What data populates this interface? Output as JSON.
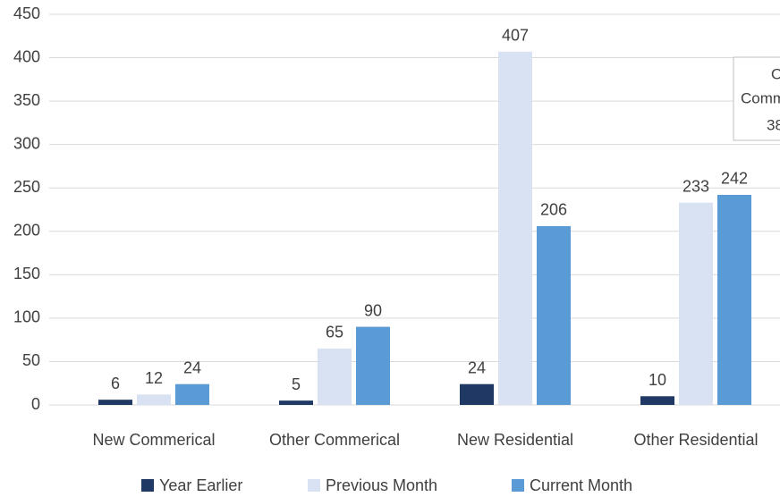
{
  "chart_data": {
    "type": "bar",
    "categories": [
      "New Commerical",
      "Other Commerical",
      "New Residential",
      "Other Residential"
    ],
    "series": [
      {
        "name": "Year Earlier",
        "color": "#1f3864",
        "values": [
          6,
          5,
          24,
          10
        ]
      },
      {
        "name": "Previous Month",
        "color": "#d9e2f3",
        "values": [
          12,
          65,
          407,
          233
        ]
      },
      {
        "name": "Current Month",
        "color": "#5b9bd5",
        "values": [
          24,
          90,
          206,
          242
        ]
      }
    ],
    "ylim": [
      0,
      450
    ],
    "yticks": [
      0,
      50,
      100,
      150,
      200,
      250,
      300,
      350,
      400,
      450
    ],
    "grid": true,
    "legend": "bottom",
    "annotation": [
      "O",
      "Comm",
      "38"
    ]
  }
}
